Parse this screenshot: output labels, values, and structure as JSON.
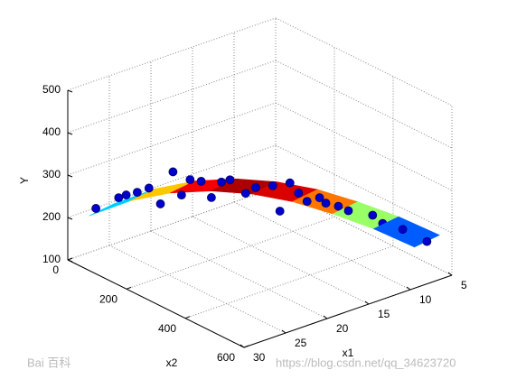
{
  "chart_data": {
    "type": "surface3d",
    "x1label": "x1",
    "x2label": "x2",
    "ylabel": "Y",
    "x1lim": [
      5,
      30
    ],
    "x1ticks": [
      5,
      10,
      15,
      20,
      25,
      30
    ],
    "x2lim": [
      0,
      600
    ],
    "x2ticks": [
      0,
      200,
      400,
      600
    ],
    "ylim": [
      100,
      500
    ],
    "yticks": [
      100,
      200,
      300,
      400,
      500
    ],
    "grid": true,
    "colormap": "jet",
    "surface": {
      "x1": [
        [
          25.5,
          23.1,
          20.8,
          18.4,
          16,
          13.6,
          11.3,
          8.9,
          6.5
        ],
        [
          28.5,
          26.1,
          23.8,
          21.4,
          19,
          16.6,
          14.3,
          11.9,
          9.5
        ]
      ],
      "x2": [
        [
          30,
          101,
          173,
          244,
          315,
          386,
          458,
          529,
          600
        ],
        [
          30,
          101,
          173,
          244,
          315,
          386,
          458,
          529,
          600
        ]
      ],
      "y": [
        [
          212,
          255,
          283,
          296,
          297,
          287,
          267,
          240,
          205
        ],
        [
          204,
          247,
          275,
          288,
          289,
          279,
          259,
          232,
          197
        ]
      ]
    },
    "points": {
      "color": "#0000cd",
      "x1": [
        27.5,
        26,
        25.8,
        25,
        24.3,
        23.8,
        23,
        22.5,
        22,
        21.2,
        20.5,
        20,
        19.5,
        19,
        18.5,
        18,
        17,
        16.5,
        16,
        15.5,
        15,
        14.2,
        13.8,
        13,
        12.5,
        12,
        11,
        10.5,
        9.5,
        8
      ],
      "x2": [
        25,
        60,
        80,
        95,
        115,
        140,
        160,
        175,
        190,
        205,
        220,
        240,
        255,
        260,
        280,
        300,
        330,
        340,
        360,
        375,
        390,
        410,
        420,
        440,
        460,
        470,
        500,
        520,
        560,
        600
      ],
      "y": [
        213,
        240,
        252,
        258,
        270,
        238,
        315,
        262,
        300,
        296,
        258,
        298,
        305,
        290,
        275,
        292,
        300,
        240,
        310,
        288,
        270,
        280,
        268,
        262,
        255,
        250,
        248,
        232,
        225,
        200
      ]
    }
  },
  "watermarks": [
    "Bai 百科",
    "https://blog.csdn.net/qq_34623720"
  ]
}
